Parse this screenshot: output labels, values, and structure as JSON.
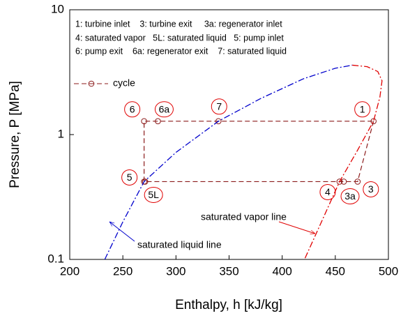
{
  "chart_data": {
    "type": "line",
    "x_label": "Enthalpy, h [kJ/kg]",
    "y_label": "Pressure, P [MPa]",
    "xlim": [
      200,
      500
    ],
    "xticks": [
      200,
      250,
      300,
      350,
      400,
      450,
      500
    ],
    "ylim": [
      0.1,
      10
    ],
    "yticks": [
      0.1,
      1,
      10
    ],
    "y_scale": "log",
    "key": [
      "1: turbine inlet    3: turbine exit     3a: regenerator inlet",
      "4: saturated vapor   5L: saturated liquid   5: pump inlet",
      "6: pump exit    6a: regenerator exit    7: saturated liquid"
    ],
    "legend_position": "upper left",
    "series": [
      {
        "name": "cycle",
        "color": "#8b1a1a",
        "marker": "circle",
        "closed": true,
        "labels": [
          "1",
          "3",
          "3a",
          "4",
          "5L",
          "5",
          "6",
          "6a",
          "7"
        ],
        "x": [
          486,
          471,
          458,
          454,
          271,
          270,
          270,
          283,
          340
        ],
        "values": [
          1.28,
          0.42,
          0.42,
          0.42,
          0.42,
          0.42,
          1.28,
          1.28,
          1.28
        ]
      },
      {
        "color": "#0000cc",
        "style": "dashdot",
        "x": [
          233,
          250,
          270,
          300,
          340,
          380,
          420,
          450,
          466
        ],
        "values": [
          0.1,
          0.2,
          0.42,
          0.72,
          1.28,
          1.95,
          2.8,
          3.4,
          3.6
        ]
      },
      {
        "color": "#e00000",
        "style": "dashdot",
        "x": [
          466,
          480,
          490,
          494,
          492,
          486,
          471,
          454,
          437,
          421
        ],
        "values": [
          3.6,
          3.5,
          3.2,
          2.7,
          2.0,
          1.28,
          0.75,
          0.42,
          0.2,
          0.1
        ]
      }
    ],
    "annotations": [
      "saturated vapor line",
      "saturated liquid line"
    ]
  }
}
